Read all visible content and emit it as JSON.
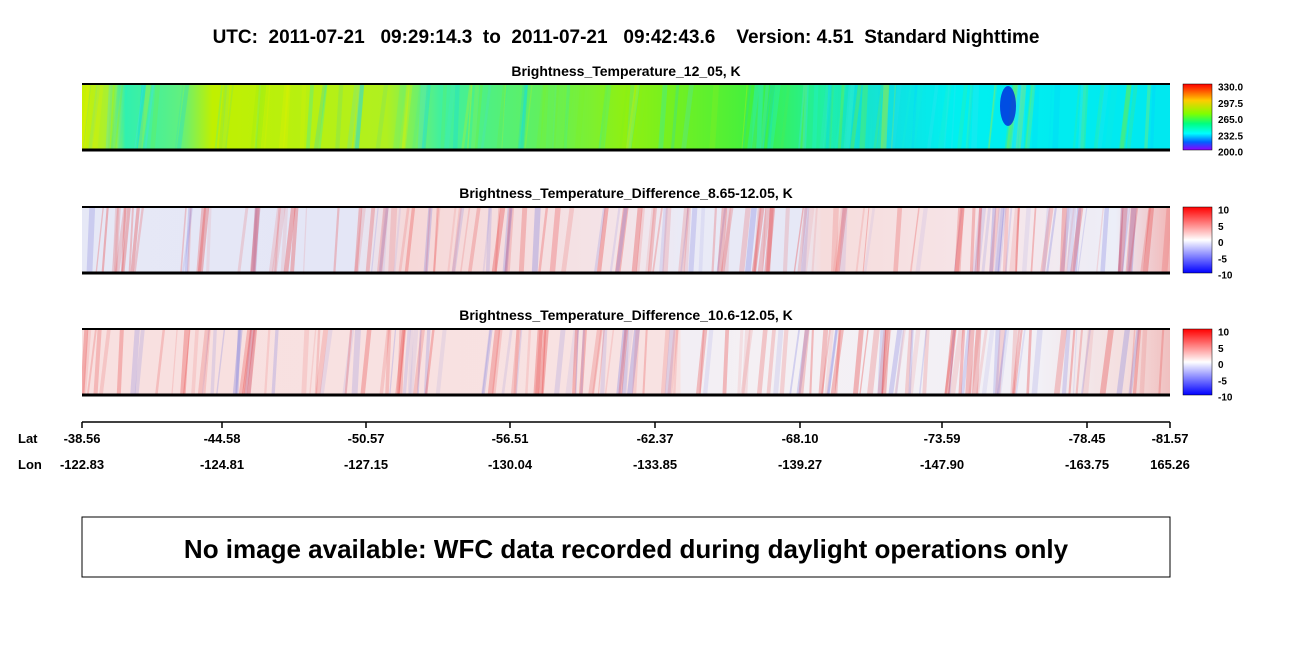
{
  "title": "UTC:  2011-07-21   09:29:14.3  to  2011-07-21   09:42:43.6    Version: 4.51  Standard Nighttime",
  "panels": [
    {
      "title": "Brightness_Temperature_12_05, K",
      "colorbar_labels": [
        "330.0",
        "297.5",
        "265.0",
        "232.5",
        "200.0"
      ]
    },
    {
      "title": "Brightness_Temperature_Difference_8.65-12.05, K",
      "colorbar_labels": [
        "10",
        "5",
        "0",
        "-5",
        "-10"
      ]
    },
    {
      "title": "Brightness_Temperature_Difference_10.6-12.05, K",
      "colorbar_labels": [
        "10",
        "5",
        "0",
        "-5",
        "-10"
      ]
    }
  ],
  "axis": {
    "lat_label": "Lat",
    "lon_label": "Lon",
    "lat": [
      "-38.56",
      "-44.58",
      "-50.57",
      "-56.51",
      "-62.37",
      "-68.10",
      "-73.59",
      "-78.45",
      "-81.57"
    ],
    "lon": [
      "-122.83",
      "-124.81",
      "-127.15",
      "-130.04",
      "-133.85",
      "-139.27",
      "-147.90",
      "-163.75",
      "165.26"
    ]
  },
  "notice": "No image available: WFC data recorded during daylight operations only"
}
